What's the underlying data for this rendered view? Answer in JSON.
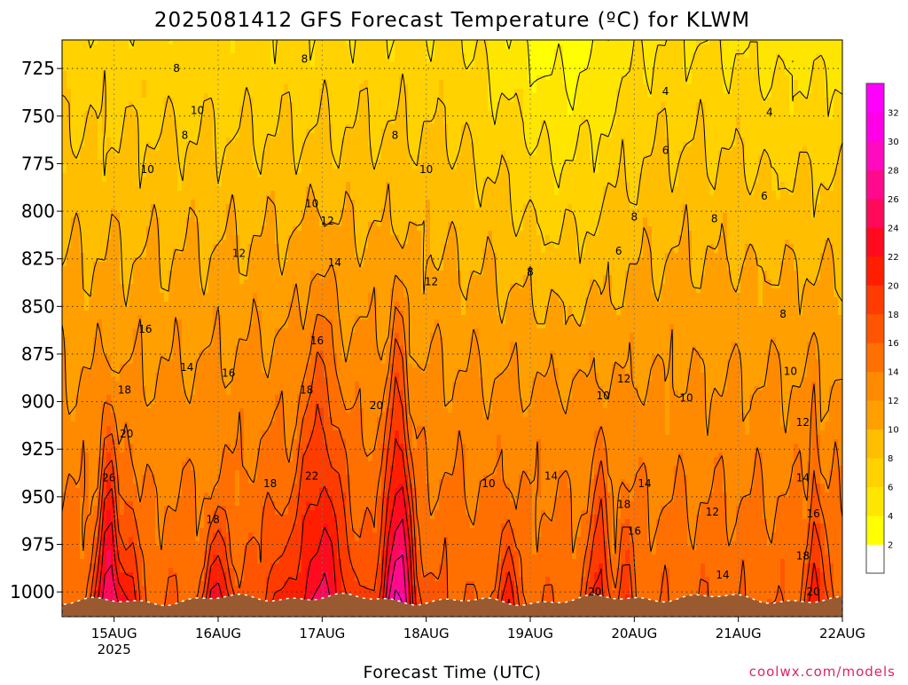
{
  "chart_data": {
    "type": "heatmap",
    "title": "2025081412 GFS Forecast Temperature (ºC) for KLWM",
    "xlabel": "Forecast Time (UTC)",
    "ylabel": "",
    "footer": "coolwx.com/models",
    "y_axis": {
      "ticks": [
        725,
        750,
        775,
        800,
        825,
        850,
        875,
        900,
        925,
        950,
        975,
        1000
      ],
      "range": [
        710,
        1013
      ],
      "inverted": true,
      "unit": "hPa"
    },
    "x_axis": {
      "ticks": [
        "15AUG",
        "16AUG",
        "17AUG",
        "18AUG",
        "19AUG",
        "20AUG",
        "21AUG",
        "22AUG"
      ],
      "tick_values": [
        1,
        2,
        3,
        4,
        5,
        6,
        7,
        8
      ],
      "year_label": "2025",
      "range": [
        0.5,
        8
      ]
    },
    "grid": true,
    "legend": {
      "position": "right",
      "levels": [
        2,
        4,
        6,
        8,
        10,
        12,
        14,
        16,
        18,
        20,
        22,
        24,
        26,
        28,
        30,
        32
      ],
      "colors": [
        "#ffffff",
        "#ffff00",
        "#ffe600",
        "#ffd200",
        "#ffbe00",
        "#ffa000",
        "#ff8a00",
        "#ff7000",
        "#ff5500",
        "#ff3c00",
        "#ff1e00",
        "#ff0a1e",
        "#ff0a5a",
        "#ff0a8c",
        "#ff0abe",
        "#ff00e6",
        "#ff00ff"
      ]
    },
    "terrain_color": "#9a5a30",
    "contour_labels": [
      {
        "x": 1.6,
        "p": 725,
        "value": "8"
      },
      {
        "x": 1.8,
        "p": 747,
        "value": "10"
      },
      {
        "x": 1.68,
        "p": 760,
        "value": "8"
      },
      {
        "x": 1.32,
        "p": 778,
        "value": "10"
      },
      {
        "x": 2.83,
        "p": 720,
        "value": "8"
      },
      {
        "x": 3.7,
        "p": 760,
        "value": "8"
      },
      {
        "x": 4.0,
        "p": 778,
        "value": "10"
      },
      {
        "x": 2.9,
        "p": 796,
        "value": "10"
      },
      {
        "x": 3.05,
        "p": 805,
        "value": "12"
      },
      {
        "x": 2.2,
        "p": 822,
        "value": "12"
      },
      {
        "x": 3.12,
        "p": 827,
        "value": "14"
      },
      {
        "x": 4.05,
        "p": 837,
        "value": "12"
      },
      {
        "x": 5.0,
        "p": 832,
        "value": "8"
      },
      {
        "x": 6.3,
        "p": 737,
        "value": "4"
      },
      {
        "x": 7.3,
        "p": 748,
        "value": "4"
      },
      {
        "x": 6.3,
        "p": 768,
        "value": "6"
      },
      {
        "x": 7.25,
        "p": 792,
        "value": "6"
      },
      {
        "x": 5.85,
        "p": 821,
        "value": "6"
      },
      {
        "x": 6.0,
        "p": 803,
        "value": "8"
      },
      {
        "x": 6.77,
        "p": 804,
        "value": "8"
      },
      {
        "x": 7.43,
        "p": 854,
        "value": "8"
      },
      {
        "x": 1.3,
        "p": 862,
        "value": "16"
      },
      {
        "x": 1.7,
        "p": 882,
        "value": "14"
      },
      {
        "x": 2.1,
        "p": 885,
        "value": "16"
      },
      {
        "x": 2.95,
        "p": 868,
        "value": "16"
      },
      {
        "x": 2.85,
        "p": 894,
        "value": "18"
      },
      {
        "x": 1.1,
        "p": 894,
        "value": "18"
      },
      {
        "x": 3.52,
        "p": 902,
        "value": "20"
      },
      {
        "x": 1.12,
        "p": 917,
        "value": "20"
      },
      {
        "x": 0.95,
        "p": 940,
        "value": "26"
      },
      {
        "x": 2.9,
        "p": 939,
        "value": "22"
      },
      {
        "x": 2.5,
        "p": 943,
        "value": "18"
      },
      {
        "x": 1.95,
        "p": 962,
        "value": "18"
      },
      {
        "x": 5.9,
        "p": 888,
        "value": "12"
      },
      {
        "x": 5.7,
        "p": 897,
        "value": "10"
      },
      {
        "x": 6.5,
        "p": 898,
        "value": "10"
      },
      {
        "x": 7.5,
        "p": 884,
        "value": "10"
      },
      {
        "x": 7.62,
        "p": 911,
        "value": "12"
      },
      {
        "x": 5.2,
        "p": 939,
        "value": "14"
      },
      {
        "x": 4.6,
        "p": 943,
        "value": "10"
      },
      {
        "x": 6.1,
        "p": 943,
        "value": "14"
      },
      {
        "x": 5.9,
        "p": 954,
        "value": "18"
      },
      {
        "x": 6.0,
        "p": 968,
        "value": "16"
      },
      {
        "x": 6.75,
        "p": 958,
        "value": "12"
      },
      {
        "x": 7.62,
        "p": 940,
        "value": "14"
      },
      {
        "x": 7.72,
        "p": 959,
        "value": "16"
      },
      {
        "x": 7.62,
        "p": 981,
        "value": "18"
      },
      {
        "x": 6.85,
        "p": 991,
        "value": "14"
      },
      {
        "x": 5.62,
        "p": 1000,
        "value": "20"
      },
      {
        "x": 7.72,
        "p": 1000,
        "value": "20"
      }
    ]
  }
}
